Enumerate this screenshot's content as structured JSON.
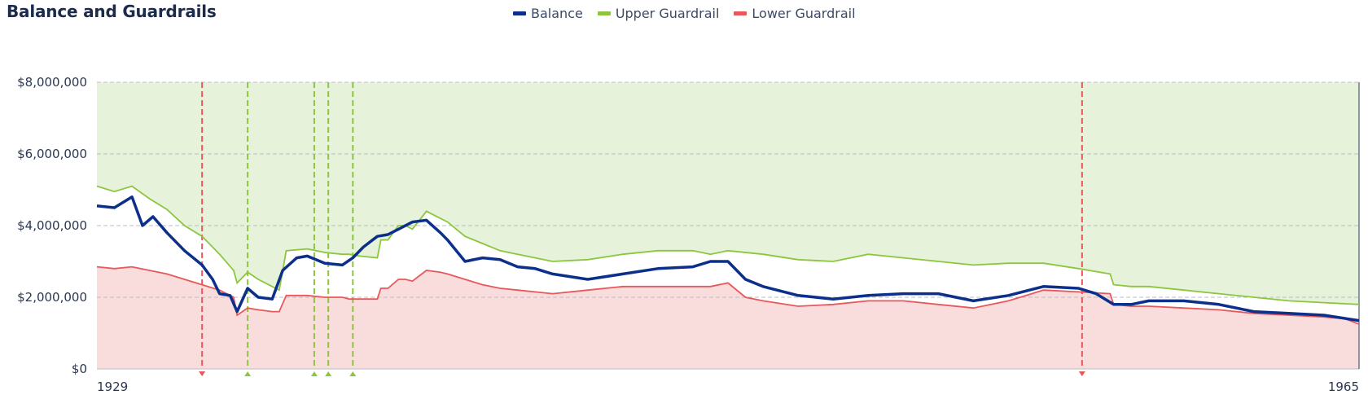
{
  "chart_data": {
    "type": "line",
    "title": "Balance and Guardrails",
    "xlabel": "",
    "ylabel": "",
    "x_range": [
      1929,
      1965
    ],
    "x_tick_labels": [
      "1929",
      "1965"
    ],
    "y_range": [
      0,
      8000000
    ],
    "y_tick_labels": [
      "$0",
      "$2,000,000",
      "$4,000,000",
      "$6,000,000",
      "$8,000,000"
    ],
    "y_tick_values": [
      0,
      2000000,
      4000000,
      6000000,
      8000000
    ],
    "grid": true,
    "legend_position": "top-center",
    "series": [
      {
        "name": "Balance",
        "color": "#0b2f8a",
        "x": [
          1929.0,
          1929.5,
          1930.0,
          1930.3,
          1930.6,
          1931.0,
          1931.5,
          1932.0,
          1932.3,
          1932.5,
          1932.8,
          1933.0,
          1933.3,
          1933.6,
          1934.0,
          1934.3,
          1934.7,
          1935.0,
          1935.5,
          1936.0,
          1936.3,
          1936.6,
          1937.0,
          1937.3,
          1937.6,
          1938.0,
          1938.4,
          1938.8,
          1939.0,
          1939.5,
          1940.0,
          1940.5,
          1941.0,
          1941.5,
          1942.0,
          1943.0,
          1944.0,
          1945.0,
          1946.0,
          1946.5,
          1947.0,
          1947.5,
          1948.0,
          1949.0,
          1950.0,
          1951.0,
          1952.0,
          1953.0,
          1954.0,
          1955.0,
          1956.0,
          1957.0,
          1957.5,
          1958.0,
          1958.5,
          1959.0,
          1960.0,
          1961.0,
          1962.0,
          1963.0,
          1964.0,
          1965.0
        ],
        "values": [
          4550000,
          4500000,
          4800000,
          4000000,
          4250000,
          3800000,
          3300000,
          2900000,
          2500000,
          2100000,
          2050000,
          1600000,
          2250000,
          2000000,
          1950000,
          2750000,
          3100000,
          3150000,
          2950000,
          2900000,
          3100000,
          3400000,
          3700000,
          3750000,
          3900000,
          4100000,
          4150000,
          3800000,
          3600000,
          3000000,
          3100000,
          3050000,
          2850000,
          2800000,
          2650000,
          2500000,
          2650000,
          2800000,
          2850000,
          3000000,
          3000000,
          2500000,
          2300000,
          2050000,
          1950000,
          2050000,
          2100000,
          2100000,
          1900000,
          2050000,
          2300000,
          2250000,
          2100000,
          1800000,
          1800000,
          1900000,
          1900000,
          1800000,
          1600000,
          1550000,
          1500000,
          1350000
        ]
      },
      {
        "name": "Upper Guardrail",
        "color": "#8cc63f",
        "x": [
          1929.0,
          1929.5,
          1930.0,
          1930.5,
          1931.0,
          1931.5,
          1932.0,
          1932.5,
          1932.9,
          1933.0,
          1933.3,
          1933.6,
          1934.0,
          1934.2,
          1934.4,
          1935.0,
          1935.5,
          1936.0,
          1936.2,
          1936.5,
          1937.0,
          1937.1,
          1937.3,
          1937.6,
          1937.8,
          1938.0,
          1938.4,
          1938.8,
          1939.0,
          1939.5,
          1940.0,
          1940.5,
          1941.0,
          1941.5,
          1942.0,
          1943.0,
          1944.0,
          1945.0,
          1946.0,
          1946.5,
          1947.0,
          1948.0,
          1949.0,
          1950.0,
          1951.0,
          1952.0,
          1953.0,
          1954.0,
          1955.0,
          1956.0,
          1957.0,
          1957.9,
          1958.0,
          1958.5,
          1959.0,
          1960.0,
          1961.0,
          1962.0,
          1963.0,
          1964.0,
          1965.0
        ],
        "values": [
          5100000,
          4950000,
          5100000,
          4750000,
          4450000,
          4000000,
          3700000,
          3200000,
          2750000,
          2400000,
          2700000,
          2500000,
          2300000,
          2200000,
          3300000,
          3350000,
          3250000,
          3200000,
          3200000,
          3150000,
          3100000,
          3600000,
          3600000,
          4000000,
          4000000,
          3900000,
          4400000,
          4200000,
          4100000,
          3700000,
          3500000,
          3300000,
          3200000,
          3100000,
          3000000,
          3050000,
          3200000,
          3300000,
          3300000,
          3200000,
          3300000,
          3200000,
          3050000,
          3000000,
          3200000,
          3100000,
          3000000,
          2900000,
          2950000,
          2950000,
          2800000,
          2650000,
          2350000,
          2300000,
          2300000,
          2200000,
          2100000,
          2000000,
          1900000,
          1850000,
          1800000
        ]
      },
      {
        "name": "Lower Guardrail",
        "color": "#e8585a",
        "x": [
          1929.0,
          1929.5,
          1930.0,
          1930.5,
          1931.0,
          1931.5,
          1932.0,
          1932.5,
          1932.9,
          1933.0,
          1933.3,
          1933.6,
          1934.0,
          1934.2,
          1934.4,
          1935.0,
          1935.5,
          1936.0,
          1936.2,
          1936.5,
          1937.0,
          1937.1,
          1937.3,
          1937.6,
          1937.8,
          1938.0,
          1938.4,
          1938.8,
          1939.0,
          1939.5,
          1940.0,
          1940.5,
          1941.0,
          1941.5,
          1942.0,
          1943.0,
          1944.0,
          1945.0,
          1946.0,
          1946.5,
          1947.0,
          1947.5,
          1948.0,
          1949.0,
          1950.0,
          1951.0,
          1952.0,
          1953.0,
          1954.0,
          1955.0,
          1956.0,
          1957.0,
          1957.9,
          1958.0,
          1958.5,
          1959.0,
          1960.0,
          1961.0,
          1962.0,
          1963.0,
          1964.0,
          1964.6,
          1965.0
        ],
        "values": [
          2850000,
          2800000,
          2850000,
          2750000,
          2650000,
          2500000,
          2350000,
          2200000,
          2000000,
          1500000,
          1700000,
          1650000,
          1600000,
          1600000,
          2050000,
          2050000,
          2000000,
          2000000,
          1950000,
          1950000,
          1950000,
          2250000,
          2250000,
          2500000,
          2500000,
          2450000,
          2750000,
          2700000,
          2650000,
          2500000,
          2350000,
          2250000,
          2200000,
          2150000,
          2100000,
          2200000,
          2300000,
          2300000,
          2300000,
          2300000,
          2400000,
          2000000,
          1900000,
          1750000,
          1800000,
          1900000,
          1900000,
          1800000,
          1700000,
          1900000,
          2200000,
          2150000,
          2100000,
          1800000,
          1750000,
          1750000,
          1700000,
          1650000,
          1550000,
          1500000,
          1450000,
          1400000,
          1250000
        ]
      }
    ],
    "markers": [
      {
        "year": 1932.0,
        "kind": "lower",
        "color": "#e8585a"
      },
      {
        "year": 1933.3,
        "kind": "upper",
        "color": "#8cc63f"
      },
      {
        "year": 1935.2,
        "kind": "upper",
        "color": "#8cc63f"
      },
      {
        "year": 1935.6,
        "kind": "upper",
        "color": "#8cc63f"
      },
      {
        "year": 1936.3,
        "kind": "upper",
        "color": "#8cc63f"
      },
      {
        "year": 1957.1,
        "kind": "lower",
        "color": "#e8585a"
      }
    ],
    "zone_colors": {
      "upper_fill": "#e6f2da",
      "lower_fill": "#f9dcdc"
    }
  }
}
